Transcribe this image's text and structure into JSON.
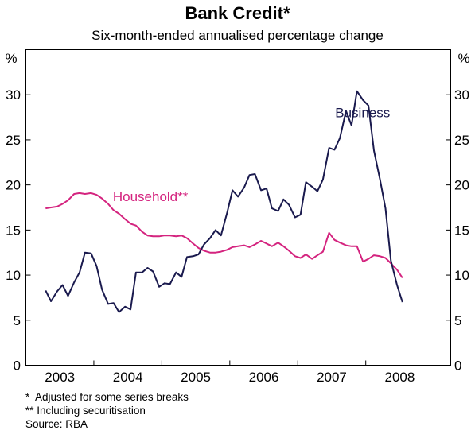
{
  "chart_data": {
    "type": "line",
    "title": "Bank Credit*",
    "subtitle": "Six-month-ended annualised percentage change",
    "ylabel_left": "%",
    "ylabel_right": "%",
    "ylim": [
      0,
      35
    ],
    "yticks": [
      0,
      5,
      10,
      15,
      20,
      25,
      30
    ],
    "xlim": [
      2002.5,
      2008.75
    ],
    "xtick_labels": [
      {
        "label": "2003",
        "x": 2003.0
      },
      {
        "label": "2004",
        "x": 2004.0
      },
      {
        "label": "2005",
        "x": 2005.0
      },
      {
        "label": "2006",
        "x": 2006.0
      },
      {
        "label": "2007",
        "x": 2007.0
      },
      {
        "label": "2008",
        "x": 2008.0
      }
    ],
    "year_boundaries": [
      2003.5,
      2004.5,
      2005.5,
      2006.5,
      2007.5
    ],
    "grid": false,
    "series": [
      {
        "name": "Business",
        "color": "#1a1a4e",
        "label_at": {
          "x": 2007.05,
          "y": 27.5
        },
        "x": [
          2002.79,
          2002.87,
          2002.96,
          2003.04,
          2003.12,
          2003.21,
          2003.29,
          2003.37,
          2003.46,
          2003.54,
          2003.62,
          2003.71,
          2003.79,
          2003.87,
          2003.96,
          2004.04,
          2004.12,
          2004.21,
          2004.29,
          2004.37,
          2004.46,
          2004.54,
          2004.62,
          2004.71,
          2004.79,
          2004.87,
          2004.96,
          2005.04,
          2005.12,
          2005.21,
          2005.29,
          2005.37,
          2005.46,
          2005.54,
          2005.62,
          2005.71,
          2005.79,
          2005.87,
          2005.96,
          2006.04,
          2006.12,
          2006.21,
          2006.29,
          2006.37,
          2006.46,
          2006.54,
          2006.62,
          2006.71,
          2006.79,
          2006.87,
          2006.96,
          2007.04,
          2007.12,
          2007.21,
          2007.29,
          2007.37,
          2007.46,
          2007.54,
          2007.62,
          2007.71,
          2007.79,
          2007.87,
          2007.96,
          2008.04
        ],
        "values": [
          8.3,
          7.1,
          8.2,
          8.9,
          7.7,
          9.2,
          10.3,
          12.5,
          12.4,
          11.0,
          8.4,
          6.8,
          6.9,
          5.9,
          6.5,
          6.2,
          10.3,
          10.3,
          10.8,
          10.4,
          8.7,
          9.1,
          9.0,
          10.3,
          9.8,
          12.0,
          12.1,
          12.3,
          13.4,
          14.1,
          15.0,
          14.4,
          16.9,
          19.4,
          18.7,
          19.7,
          21.1,
          21.2,
          19.4,
          19.6,
          17.4,
          17.1,
          18.4,
          17.8,
          16.4,
          16.7,
          20.3,
          19.8,
          19.3,
          20.6,
          24.1,
          23.9,
          25.2,
          28.2,
          26.6,
          30.4,
          29.4,
          28.8,
          23.8,
          20.6,
          17.4,
          11.6,
          8.9,
          7.0
        ]
      },
      {
        "name": "Household**",
        "color": "#d4247f",
        "label_at": {
          "x": 2003.78,
          "y": 18.2
        },
        "x": [
          2002.79,
          2002.87,
          2002.96,
          2003.04,
          2003.12,
          2003.21,
          2003.29,
          2003.37,
          2003.46,
          2003.54,
          2003.62,
          2003.71,
          2003.79,
          2003.87,
          2003.96,
          2004.04,
          2004.12,
          2004.21,
          2004.29,
          2004.37,
          2004.46,
          2004.54,
          2004.62,
          2004.71,
          2004.79,
          2004.87,
          2004.96,
          2005.04,
          2005.12,
          2005.21,
          2005.29,
          2005.37,
          2005.46,
          2005.54,
          2005.62,
          2005.71,
          2005.79,
          2005.87,
          2005.96,
          2006.04,
          2006.12,
          2006.21,
          2006.29,
          2006.37,
          2006.46,
          2006.54,
          2006.62,
          2006.71,
          2006.79,
          2006.87,
          2006.96,
          2007.04,
          2007.12,
          2007.21,
          2007.29,
          2007.37,
          2007.46,
          2007.54,
          2007.62,
          2007.71,
          2007.79,
          2007.87,
          2007.96,
          2008.04
        ],
        "values": [
          17.4,
          17.5,
          17.6,
          17.9,
          18.3,
          19.0,
          19.1,
          19.0,
          19.1,
          18.9,
          18.5,
          17.9,
          17.2,
          16.8,
          16.2,
          15.7,
          15.5,
          14.8,
          14.4,
          14.3,
          14.3,
          14.4,
          14.4,
          14.3,
          14.4,
          14.1,
          13.5,
          13.0,
          12.7,
          12.5,
          12.5,
          12.6,
          12.8,
          13.1,
          13.2,
          13.3,
          13.1,
          13.4,
          13.8,
          13.5,
          13.2,
          13.6,
          13.2,
          12.7,
          12.1,
          11.9,
          12.3,
          11.8,
          12.2,
          12.6,
          14.7,
          13.9,
          13.6,
          13.3,
          13.2,
          13.2,
          11.5,
          11.8,
          12.2,
          12.1,
          11.9,
          11.3,
          10.6,
          9.7
        ]
      }
    ],
    "notes": [
      "*  Adjusted for some series breaks",
      "** Including securitisation",
      "Source: RBA"
    ]
  }
}
